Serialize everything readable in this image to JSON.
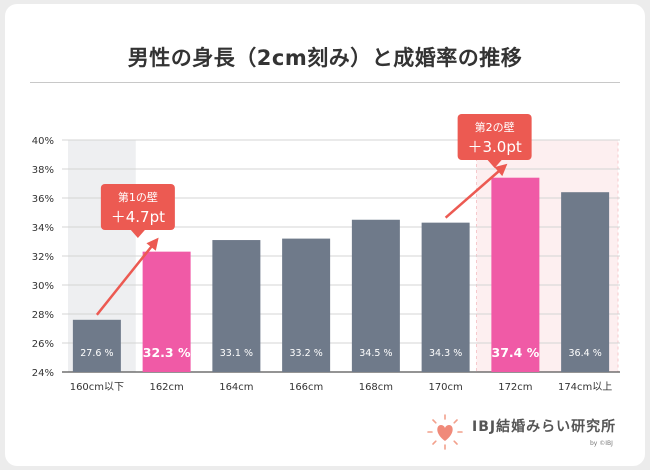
{
  "title": "男性の身長（2cm刻み）と成婚率の推移",
  "chart_data": {
    "type": "bar",
    "categories": [
      "160cm以下",
      "162cm",
      "164cm",
      "166cm",
      "168cm",
      "170cm",
      "172cm",
      "174cm以上"
    ],
    "values": [
      27.6,
      32.3,
      33.1,
      33.2,
      34.5,
      34.3,
      37.4,
      36.4
    ],
    "value_labels": [
      "27.6 %",
      "32.3 %",
      "33.1 %",
      "33.2 %",
      "34.5 %",
      "34.3 %",
      "37.4 %",
      "36.4 %"
    ],
    "highlighted": [
      1,
      6
    ],
    "ylim": [
      24,
      40
    ],
    "yticks": [
      "24%",
      "26%",
      "28%",
      "30%",
      "32%",
      "34%",
      "36%",
      "38%",
      "40%"
    ],
    "grid": true,
    "colors": {
      "normal": "#6f7a8a",
      "highlight": "#f05aa6",
      "callout": "#ec5a52",
      "shade_gray": "#eeeff1",
      "shade_pink": "#fdeff0"
    },
    "annotations": [
      {
        "title": "第1の壁",
        "value": "＋4.7pt",
        "from": 0,
        "to": 1
      },
      {
        "title": "第2の壁",
        "value": "＋3.0pt",
        "from": 5,
        "to": 6
      }
    ]
  },
  "logo": {
    "text": "IBJ結婚みらい研究所",
    "sub": "by ©IBJ",
    "icon": "heart-sun-icon"
  }
}
